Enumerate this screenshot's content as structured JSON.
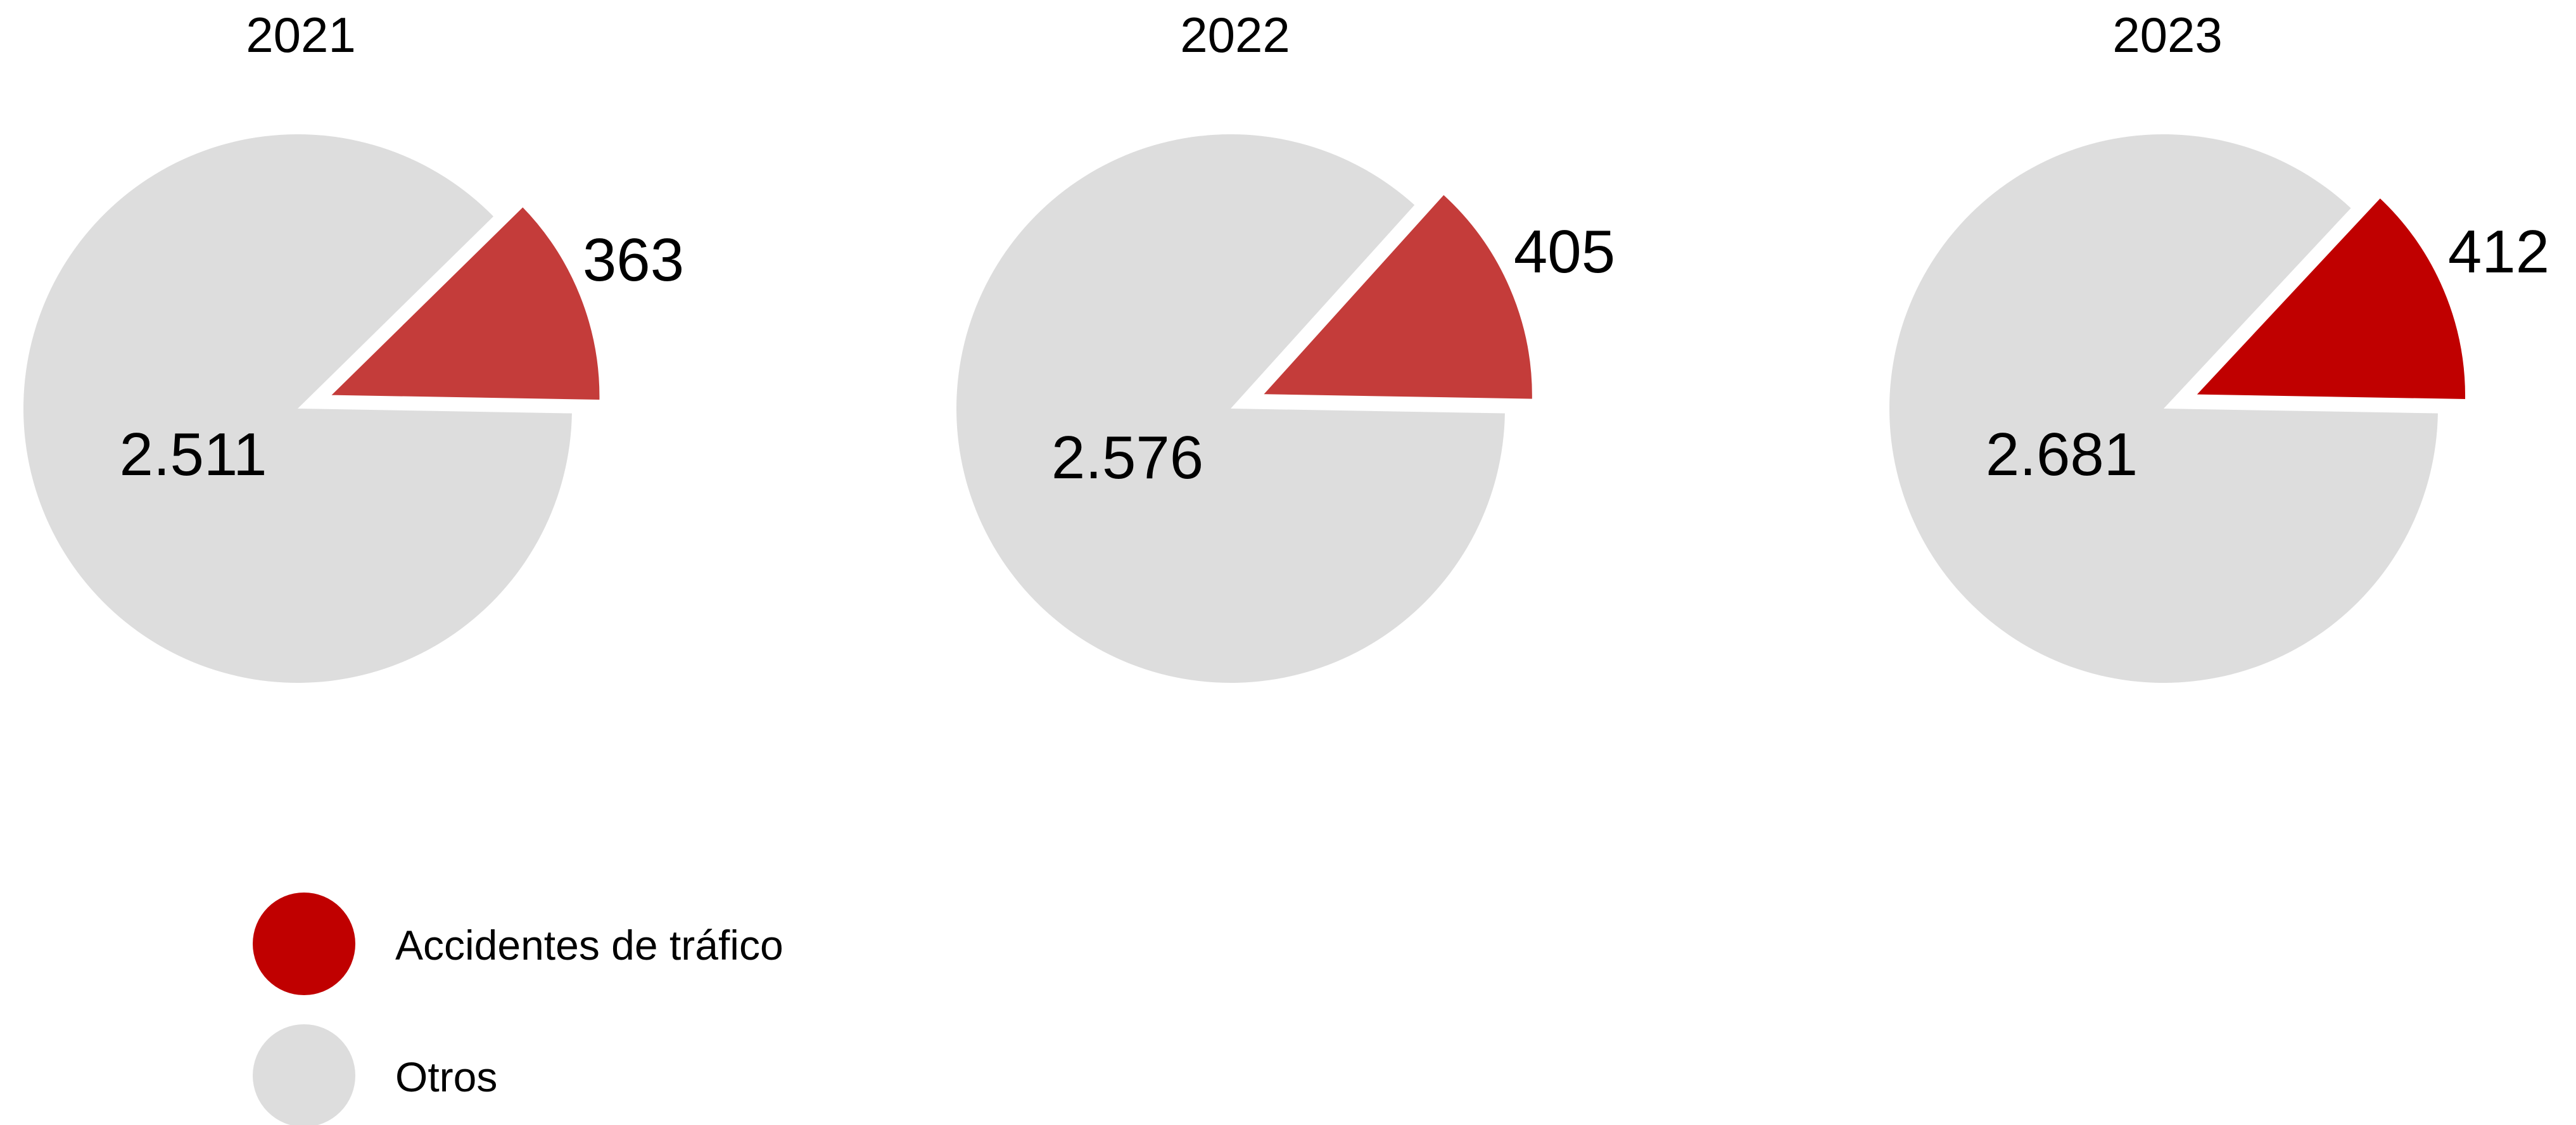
{
  "chart_data": [
    {
      "type": "pie",
      "title": "2021",
      "slices": [
        {
          "label": "Accidentes de tráfico",
          "value": 363,
          "display": "363"
        },
        {
          "label": "Otros",
          "value": 2511,
          "display": "2.511"
        }
      ]
    },
    {
      "type": "pie",
      "title": "2022",
      "slices": [
        {
          "label": "Accidentes de tráfico",
          "value": 405,
          "display": "405"
        },
        {
          "label": "Otros",
          "value": 2576,
          "display": "2.576"
        }
      ]
    },
    {
      "type": "pie",
      "title": "2023",
      "slices": [
        {
          "label": "Accidentes de tráfico",
          "value": 412,
          "display": "412"
        },
        {
          "label": "Otros",
          "value": 2681,
          "display": "2.681"
        }
      ]
    }
  ],
  "legend": [
    {
      "label": "Accidentes de tráfico",
      "color": "#c00000"
    },
    {
      "label": "Otros",
      "color": "#dddddd"
    }
  ],
  "colors": {
    "Otros": "#dddddd",
    "Accidentes de tráfico": [
      "#c43c3a",
      "#c43c3a",
      "#c00000"
    ]
  }
}
